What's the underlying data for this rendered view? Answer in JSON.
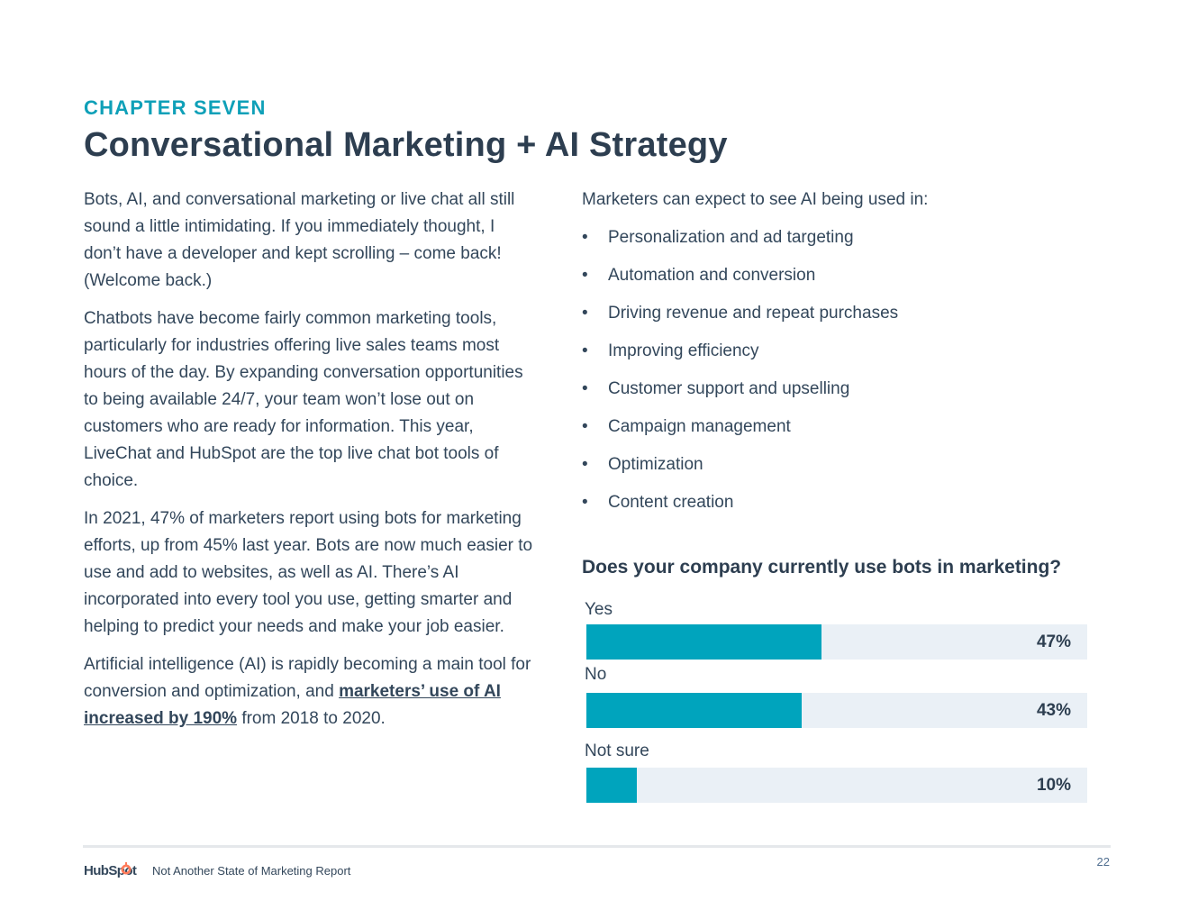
{
  "header": {
    "chapter": "CHAPTER SEVEN",
    "title": "Conversational Marketing + AI Strategy"
  },
  "left": {
    "p1": "Bots, AI, and conversational marketing or live chat all still sound a little intimidating. If you immediately thought, I don’t have a developer and kept scrolling – come back! (Welcome back.)",
    "p2": "Chatbots have become fairly common marketing tools, particularly for industries offering live sales teams most hours of the day. By expanding conversation opportunities to being available 24/7, your team won’t lose out on customers who are ready for information. This year, LiveChat and HubSpot are the top live chat bot tools of choice.",
    "p3": "In 2021, 47% of marketers report using bots for marketing efforts, up from 45% last year. Bots are now much easier to use and add to websites, as well as AI. There’s AI incorporated into every tool you use, getting smarter and helping to predict your needs and make your job easier.",
    "p4_before": "Artificial intelligence (AI) is rapidly becoming a main tool for conversion and optimization, and ",
    "p4_link": "marketers’ use of AI increased by 190%",
    "p4_after": " from 2018 to 2020."
  },
  "right": {
    "intro": "Marketers can expect to see AI being used in:",
    "bullet_symbol": "•",
    "bullets": [
      "Personalization and ad targeting",
      "Automation and conversion",
      "Driving revenue and repeat purchases",
      "Improving efficiency",
      "Customer support and upselling",
      "Campaign management",
      "Optimization",
      "Content creation"
    ]
  },
  "chart_data": {
    "type": "bar",
    "orientation": "horizontal",
    "title": "Does your company currently use bots in marketing?",
    "categories": [
      "Yes",
      "No",
      "Not sure"
    ],
    "values": [
      47,
      43,
      10
    ],
    "value_labels": [
      "47%",
      "43%",
      "10%"
    ],
    "xlim": [
      0,
      100
    ],
    "colors": {
      "bar": "#00a4bd",
      "track": "#eaf0f6"
    }
  },
  "footer": {
    "brand": "HubSpot",
    "report": "Not Another State of Marketing Report",
    "page": "22"
  },
  "colors": {
    "accent": "#0fa0b8",
    "heading": "#2d3e50",
    "text": "#33475b",
    "logo_orange": "#ff7a59"
  }
}
